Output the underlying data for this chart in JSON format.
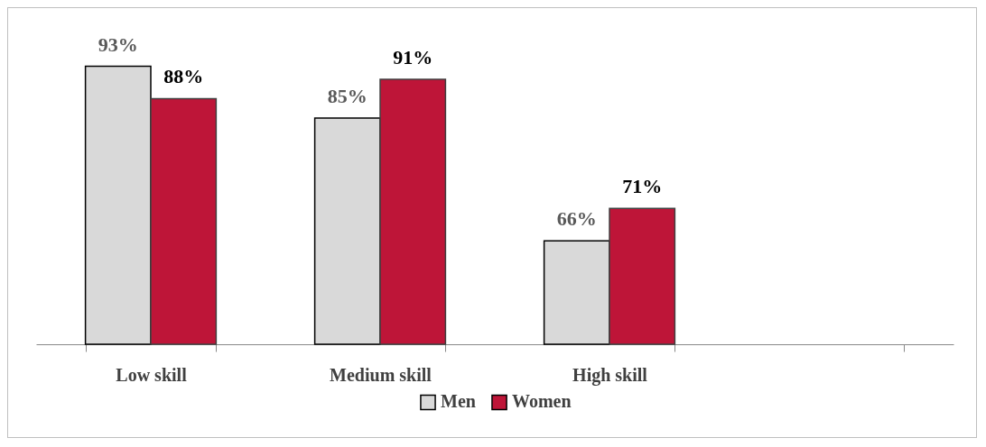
{
  "chart_data": {
    "type": "bar",
    "categories": [
      "Low skill",
      "Medium skill",
      "High skill",
      null
    ],
    "series": [
      {
        "name": "Men",
        "color": "#d9d9d9",
        "values": [
          93,
          85,
          66,
          null
        ],
        "value_labels": [
          "93%",
          "85%",
          "66%",
          null
        ]
      },
      {
        "name": "Women",
        "color": "#be1538",
        "values": [
          88,
          91,
          71,
          null
        ],
        "value_labels": [
          "88%",
          "91%",
          "71%",
          null
        ]
      }
    ],
    "ylim": [
      50,
      102
    ],
    "tick_labels": "x",
    "legend": "bottom"
  }
}
